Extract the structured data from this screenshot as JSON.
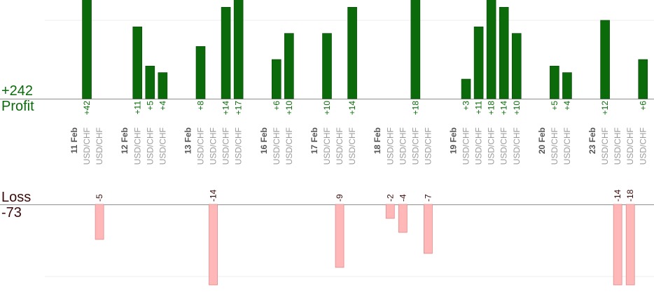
{
  "summary": {
    "profit_total": "+242",
    "profit_label": "Profit",
    "loss_label": "Loss",
    "loss_total": "-73"
  },
  "colors": {
    "profit_bar": "#0b6b0b",
    "profit_bar_edge": "#064806",
    "profit_text": "#0a6b0a",
    "loss_bar": "#ffb7b7",
    "loss_bar_edge": "#e08a8a",
    "loss_text": "#3a0a0a",
    "pair_text": "#9a9a9a",
    "date_text": "#555555"
  },
  "chart_data": {
    "type": "bar",
    "profit_scale_max": 12,
    "loss_scale_max": 9,
    "columns": [
      {
        "kind": "date",
        "label": "11 Feb"
      },
      {
        "kind": "trade",
        "pair": "USD/CHF",
        "profit": 42,
        "label": "+42"
      },
      {
        "kind": "trade",
        "pair": "USD/CHF",
        "loss": -5,
        "label": "-5"
      },
      {
        "kind": "gap"
      },
      {
        "kind": "date",
        "label": "12 Feb"
      },
      {
        "kind": "trade",
        "pair": "USD/CHF",
        "profit": 11,
        "label": "+11"
      },
      {
        "kind": "trade",
        "pair": "USD/CHF",
        "profit": 5,
        "label": "+5"
      },
      {
        "kind": "trade",
        "pair": "USD/CHF",
        "profit": 4,
        "label": "+4"
      },
      {
        "kind": "gap"
      },
      {
        "kind": "date",
        "label": "13 Feb"
      },
      {
        "kind": "trade",
        "pair": "USD/CHF",
        "profit": 8,
        "label": "+8"
      },
      {
        "kind": "trade",
        "pair": "USD/CHF",
        "loss": -14,
        "label": "-14"
      },
      {
        "kind": "trade",
        "pair": "USD/CHF",
        "profit": 14,
        "label": "+14"
      },
      {
        "kind": "trade",
        "pair": "USD/CHF",
        "profit": 17,
        "label": "+17"
      },
      {
        "kind": "gap"
      },
      {
        "kind": "date",
        "label": "16 Feb"
      },
      {
        "kind": "trade",
        "pair": "USD/CHF",
        "profit": 6,
        "label": "+6"
      },
      {
        "kind": "trade",
        "pair": "USD/CHF",
        "profit": 10,
        "label": "+10"
      },
      {
        "kind": "gap"
      },
      {
        "kind": "date",
        "label": "17 Feb"
      },
      {
        "kind": "trade",
        "pair": "USD/CHF",
        "profit": 10,
        "label": "+10"
      },
      {
        "kind": "trade",
        "pair": "USD/CHF",
        "loss": -9,
        "label": "-9"
      },
      {
        "kind": "trade",
        "pair": "USD/CHF",
        "profit": 14,
        "label": "+14"
      },
      {
        "kind": "gap"
      },
      {
        "kind": "date",
        "label": "18 Feb"
      },
      {
        "kind": "trade",
        "pair": "USD/CHF",
        "loss": -2,
        "label": "-2"
      },
      {
        "kind": "trade",
        "pair": "USD/CHF",
        "loss": -4,
        "label": "-4"
      },
      {
        "kind": "trade",
        "pair": "USD/CHF",
        "profit": 18,
        "label": "+18"
      },
      {
        "kind": "trade",
        "pair": "USD/CHF",
        "loss": -7,
        "label": "-7"
      },
      {
        "kind": "gap"
      },
      {
        "kind": "date",
        "label": "19 Feb"
      },
      {
        "kind": "trade",
        "pair": "USD/CHF",
        "profit": 3,
        "label": "+3"
      },
      {
        "kind": "trade",
        "pair": "USD/CHF",
        "profit": 11,
        "label": "+11"
      },
      {
        "kind": "trade",
        "pair": "USD/CHF",
        "profit": 18,
        "label": "+18"
      },
      {
        "kind": "trade",
        "pair": "USD/CHF",
        "profit": 14,
        "label": "+14"
      },
      {
        "kind": "trade",
        "pair": "USD/CHF",
        "profit": 10,
        "label": "+10"
      },
      {
        "kind": "gap"
      },
      {
        "kind": "date",
        "label": "20 Feb"
      },
      {
        "kind": "trade",
        "pair": "USD/CHF",
        "profit": 5,
        "label": "+5"
      },
      {
        "kind": "trade",
        "pair": "USD/CHF",
        "profit": 4,
        "label": "+4"
      },
      {
        "kind": "gap"
      },
      {
        "kind": "date",
        "label": "23 Feb"
      },
      {
        "kind": "trade",
        "pair": "USD/CHF",
        "profit": 12,
        "label": "+12"
      },
      {
        "kind": "trade",
        "pair": "USD/CHF",
        "loss": -14,
        "label": "-14"
      },
      {
        "kind": "trade",
        "pair": "USD/CHF",
        "loss": -18,
        "label": "-18"
      },
      {
        "kind": "trade",
        "pair": "USD/CHF",
        "profit": 6,
        "label": "+6"
      }
    ]
  }
}
